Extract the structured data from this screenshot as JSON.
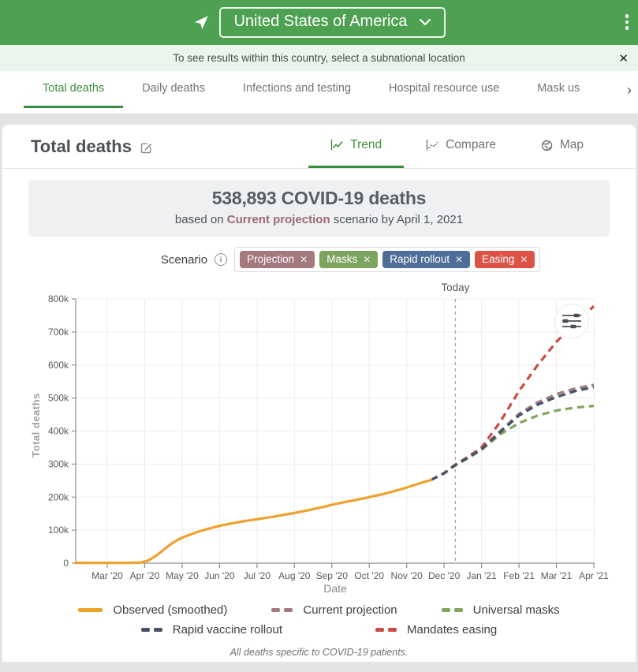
{
  "colors": {
    "header_green": "#4da151",
    "active_green": "#3e8e41",
    "underline_green": "#388e3c",
    "notice_bg": "#eaf5ec",
    "summary_bg": "#eef0f2",
    "scenario_mauve": "#9d6a72"
  },
  "header": {
    "location": "United States of America",
    "nav_arrow_icon": "navigation-arrow",
    "kebab_icon": "vertical-dots-menu"
  },
  "notice": {
    "text": "To see results within this country, select a subnational location",
    "close_label": "✕"
  },
  "nav_tabs": {
    "items": [
      {
        "label": "Total deaths",
        "active": true
      },
      {
        "label": "Daily deaths",
        "active": false
      },
      {
        "label": "Infections and testing",
        "active": false
      },
      {
        "label": "Hospital resource use",
        "active": false
      },
      {
        "label": "Mask us",
        "active": false
      }
    ],
    "scroll_icon": "›"
  },
  "page": {
    "title": "Total deaths"
  },
  "view_tabs": [
    {
      "label": "Trend",
      "active": true,
      "icon": "trend-line-icon"
    },
    {
      "label": "Compare",
      "active": false,
      "icon": "compare-lines-icon"
    },
    {
      "label": "Map",
      "active": false,
      "icon": "globe-icon"
    }
  ],
  "summary": {
    "headline": "538,893 COVID-19 deaths",
    "sub_prefix": "based on",
    "scenario_name": "Current projection",
    "sub_suffix": "scenario by April 1, 2021"
  },
  "scenario": {
    "label": "Scenario",
    "info_icon": "i",
    "chips": [
      {
        "label": "Projection",
        "remove_label": "✕",
        "color": "#a3787f"
      },
      {
        "label": "Masks",
        "remove_label": "✕",
        "color": "#7da45e"
      },
      {
        "label": "Rapid rollout",
        "remove_label": "✕",
        "color": "#4e6e99"
      },
      {
        "label": "Easing",
        "remove_label": "✕",
        "color": "#dc5247"
      }
    ]
  },
  "chart_data": {
    "type": "line",
    "xlabel": "Date",
    "ylabel": "Total deaths",
    "today_label": "Today",
    "today_x": 9.3,
    "x_unit": "months since Mar 2020 tick (0 = Mar '20, 13 = Apr '21)",
    "y_unit": "thousands of deaths",
    "ylim": [
      0,
      800000
    ],
    "grid": true,
    "x_tick_labels": [
      "Mar '20",
      "Apr '20",
      "May '20",
      "Jun '20",
      "Jul '20",
      "Aug '20",
      "Sep '20",
      "Oct '20",
      "Nov '20",
      "Dec '20",
      "Jan '21",
      "Feb '21",
      "Mar '21",
      "Apr '21"
    ],
    "y_tick_labels": [
      "0",
      "100k",
      "200k",
      "300k",
      "400k",
      "500k",
      "600k",
      "700k",
      "800k"
    ],
    "series": [
      {
        "name": "Current projection",
        "color": "#a3787f",
        "dash": true,
        "points": [
          [
            8.65,
            252
          ],
          [
            9,
            273
          ],
          [
            9.3,
            298
          ],
          [
            9.65,
            322
          ],
          [
            10,
            347
          ],
          [
            10.5,
            400
          ],
          [
            11,
            452
          ],
          [
            11.5,
            487
          ],
          [
            12,
            512
          ],
          [
            12.5,
            529
          ],
          [
            13,
            540
          ]
        ]
      },
      {
        "name": "Universal masks",
        "color": "#80a55e",
        "dash": true,
        "points": [
          [
            8.65,
            252
          ],
          [
            9,
            272
          ],
          [
            9.3,
            296
          ],
          [
            9.65,
            319
          ],
          [
            10,
            343
          ],
          [
            10.5,
            390
          ],
          [
            11,
            424
          ],
          [
            11.5,
            447
          ],
          [
            12,
            462
          ],
          [
            12.5,
            471
          ],
          [
            13,
            476
          ]
        ]
      },
      {
        "name": "Mandates easing",
        "color": "#cc4b44",
        "dash": true,
        "points": [
          [
            8.65,
            252
          ],
          [
            9,
            273
          ],
          [
            9.3,
            298
          ],
          [
            9.65,
            323
          ],
          [
            10,
            350
          ],
          [
            10.5,
            428
          ],
          [
            11,
            521
          ],
          [
            11.5,
            600
          ],
          [
            12,
            670
          ],
          [
            12.5,
            727
          ],
          [
            13,
            778
          ]
        ]
      },
      {
        "name": "Rapid vaccine rollout",
        "color": "#455268",
        "dash": true,
        "points": [
          [
            8.65,
            252
          ],
          [
            9,
            272
          ],
          [
            9.3,
            297
          ],
          [
            9.65,
            320
          ],
          [
            10,
            345
          ],
          [
            10.5,
            397
          ],
          [
            11,
            447
          ],
          [
            11.5,
            480
          ],
          [
            12,
            503
          ],
          [
            12.5,
            521
          ],
          [
            13,
            533
          ]
        ]
      },
      {
        "name": "Observed (smoothed)",
        "color": "#efa12d",
        "dash": false,
        "points": [
          [
            -0.85,
            1
          ],
          [
            0,
            1
          ],
          [
            0.6,
            1
          ],
          [
            0.9,
            2
          ],
          [
            1.1,
            8
          ],
          [
            1.3,
            22
          ],
          [
            1.5,
            40
          ],
          [
            1.7,
            58
          ],
          [
            1.9,
            72
          ],
          [
            2.1,
            82
          ],
          [
            2.4,
            94
          ],
          [
            2.7,
            104
          ],
          [
            3,
            113
          ],
          [
            3.3,
            120
          ],
          [
            3.6,
            126
          ],
          [
            4,
            133
          ],
          [
            4.4,
            140
          ],
          [
            4.8,
            148
          ],
          [
            5,
            152
          ],
          [
            5.4,
            161
          ],
          [
            5.8,
            171
          ],
          [
            6,
            177
          ],
          [
            6.4,
            186
          ],
          [
            6.8,
            195
          ],
          [
            7,
            200
          ],
          [
            7.4,
            210
          ],
          [
            7.8,
            222
          ],
          [
            8,
            229
          ],
          [
            8.3,
            240
          ],
          [
            8.65,
            252
          ]
        ]
      }
    ]
  },
  "chart_controls": {
    "options_button_icon": "sliders-icon"
  },
  "legend": {
    "rows": [
      [
        {
          "label": "Observed (smoothed)",
          "color": "#efa12d",
          "dash": false
        },
        {
          "label": "Current projection",
          "color": "#a3787f",
          "dash": true
        },
        {
          "label": "Universal masks",
          "color": "#80a55e",
          "dash": true
        }
      ],
      [
        {
          "label": "Rapid vaccine rollout",
          "color": "#455268",
          "dash": true
        },
        {
          "label": "Mandates easing",
          "color": "#cc4b44",
          "dash": true
        }
      ]
    ]
  },
  "footnote": "All deaths specific to COVID-19 patients."
}
